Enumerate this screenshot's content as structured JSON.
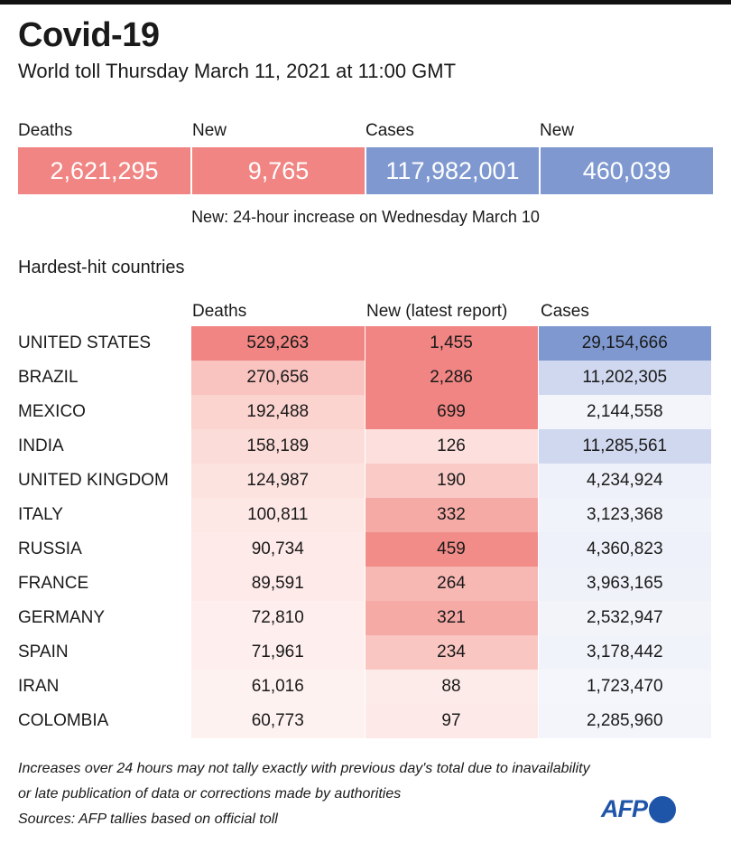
{
  "title": "Covid-19",
  "subtitle": "World toll Thursday March 11, 2021 at 11:00 GMT",
  "kpis": [
    {
      "label": "Deaths",
      "value": "2,621,295",
      "color": "#f08583"
    },
    {
      "label": "New",
      "value": "9,765",
      "color": "#f08583"
    },
    {
      "label": "Cases",
      "value": "117,982,001",
      "color": "#7f99d0"
    },
    {
      "label": "New",
      "value": "460,039",
      "color": "#7f99d0"
    }
  ],
  "new_note": "New: 24-hour increase on Wednesday March 10",
  "section_title": "Hardest-hit countries",
  "chart_data": {
    "type": "table",
    "title": "Hardest-hit countries",
    "columns": [
      "Deaths",
      "New (latest report)",
      "Cases"
    ],
    "rows": [
      {
        "country": "UNITED STATES",
        "deaths": "529,263",
        "new": "1,455",
        "cases": "29,154,666",
        "colors": [
          "#f08583",
          "#f08583",
          "#7f99d0"
        ]
      },
      {
        "country": "BRAZIL",
        "deaths": "270,656",
        "new": "2,286",
        "cases": "11,202,305",
        "colors": [
          "#f9c3bf",
          "#f08583",
          "#d0d8ef"
        ]
      },
      {
        "country": "MEXICO",
        "deaths": "192,488",
        "new": "699",
        "cases": "2,144,558",
        "colors": [
          "#fbd3cf",
          "#f08583",
          "#f3f5fb"
        ]
      },
      {
        "country": "INDIA",
        "deaths": "158,189",
        "new": "126",
        "cases": "11,285,561",
        "colors": [
          "#fcdcd9",
          "#fde0dd",
          "#d0d8ef"
        ]
      },
      {
        "country": "UNITED KINGDOM",
        "deaths": "124,987",
        "new": "190",
        "cases": "4,234,924",
        "colors": [
          "#fde3e0",
          "#f9cac6",
          "#eef1f9"
        ]
      },
      {
        "country": "ITALY",
        "deaths": "100,811",
        "new": "332",
        "cases": "3,123,368",
        "colors": [
          "#fde8e6",
          "#f6aaa6",
          "#f1f3fa"
        ]
      },
      {
        "country": "RUSSIA",
        "deaths": "90,734",
        "new": "459",
        "cases": "4,360,823",
        "colors": [
          "#feeae8",
          "#f28c89",
          "#eef1f9"
        ]
      },
      {
        "country": "FRANCE",
        "deaths": "89,591",
        "new": "264",
        "cases": "3,963,165",
        "colors": [
          "#feebe9",
          "#f7b8b4",
          "#eff2f9"
        ]
      },
      {
        "country": "GERMANY",
        "deaths": "72,810",
        "new": "321",
        "cases": "2,532,947",
        "colors": [
          "#feeeed",
          "#f5aaa6",
          "#f2f4fa"
        ]
      },
      {
        "country": "SPAIN",
        "deaths": "71,961",
        "new": "234",
        "cases": "3,178,442",
        "colors": [
          "#feefee",
          "#f9c6c2",
          "#f1f3fa"
        ]
      },
      {
        "country": "IRAN",
        "deaths": "61,016",
        "new": "88",
        "cases": "1,723,470",
        "colors": [
          "#fef2f1",
          "#fdebea",
          "#f4f6fb"
        ]
      },
      {
        "country": "COLOMBIA",
        "deaths": "60,773",
        "new": "97",
        "cases": "2,285,960",
        "colors": [
          "#fef2f1",
          "#fde9e7",
          "#f3f5fb"
        ]
      }
    ]
  },
  "footnotes": [
    "Increases over 24 hours may not tally exactly with previous day's total due to inavailability",
    "or late publication of data or corrections made by authorities",
    "Sources: AFP  tallies based on official toll"
  ],
  "logo_text": "AFP"
}
